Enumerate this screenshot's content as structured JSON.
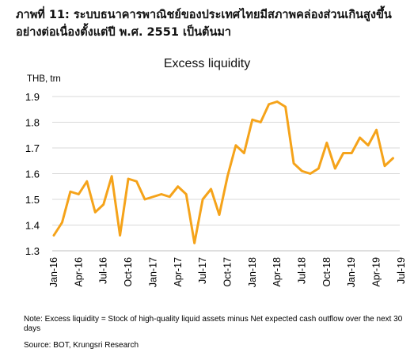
{
  "header": {
    "figure_title": "ภาพที่ 11: ระบบธนาคารพาณิชย์ของประเทศไทยมีสภาพคล่องส่วนเกินสูงขึ้นอย่างต่อเนื่องตั้งแต่ปี พ.ศ. 2551 เป็นต้นมา"
  },
  "footer": {
    "note": "Note: Excess liquidity = Stock of high-quality liquid assets minus Net expected cash outflow over the next 30 days",
    "source": "Source: BOT, Krungsri Research"
  },
  "chart_data": {
    "type": "line",
    "title": "Excess liquidity",
    "ylabel": "THB, trn",
    "xlabel": "",
    "ylim": [
      1.3,
      1.9
    ],
    "yticks": [
      "1.3",
      "1.4",
      "1.5",
      "1.6",
      "1.7",
      "1.8",
      "1.9"
    ],
    "xtick_labels": [
      "Jan-16",
      "Apr-16",
      "Jul-16",
      "Oct-16",
      "Jan-17",
      "Apr-17",
      "Jul-17",
      "Oct-17",
      "Jan-18",
      "Apr-18",
      "Jul-18",
      "Oct-18",
      "Jan-19",
      "Apr-19",
      "Jul-19"
    ],
    "grid": "horizontal",
    "line_color": "#F5A31A",
    "x": [
      "Jan-16",
      "Feb-16",
      "Mar-16",
      "Apr-16",
      "May-16",
      "Jun-16",
      "Jul-16",
      "Aug-16",
      "Sep-16",
      "Oct-16",
      "Nov-16",
      "Dec-16",
      "Jan-17",
      "Feb-17",
      "Mar-17",
      "Apr-17",
      "May-17",
      "Jun-17",
      "Jul-17",
      "Aug-17",
      "Sep-17",
      "Oct-17",
      "Nov-17",
      "Dec-17",
      "Jan-18",
      "Feb-18",
      "Mar-18",
      "Apr-18",
      "May-18",
      "Jun-18",
      "Jul-18",
      "Aug-18",
      "Sep-18",
      "Oct-18",
      "Nov-18",
      "Dec-18",
      "Jan-19",
      "Feb-19",
      "Mar-19",
      "Apr-19",
      "May-19",
      "Jun-19"
    ],
    "series": [
      {
        "values": [
          1.36,
          1.41,
          1.53,
          1.52,
          1.57,
          1.45,
          1.48,
          1.59,
          1.36,
          1.58,
          1.57,
          1.5,
          1.51,
          1.52,
          1.51,
          1.55,
          1.52,
          1.33,
          1.5,
          1.54,
          1.44,
          1.59,
          1.71,
          1.68,
          1.81,
          1.8,
          1.87,
          1.88,
          1.86,
          1.64,
          1.61,
          1.6,
          1.62,
          1.72,
          1.62,
          1.68,
          1.68,
          1.74,
          1.71,
          1.77,
          1.63,
          1.66
        ]
      }
    ]
  }
}
